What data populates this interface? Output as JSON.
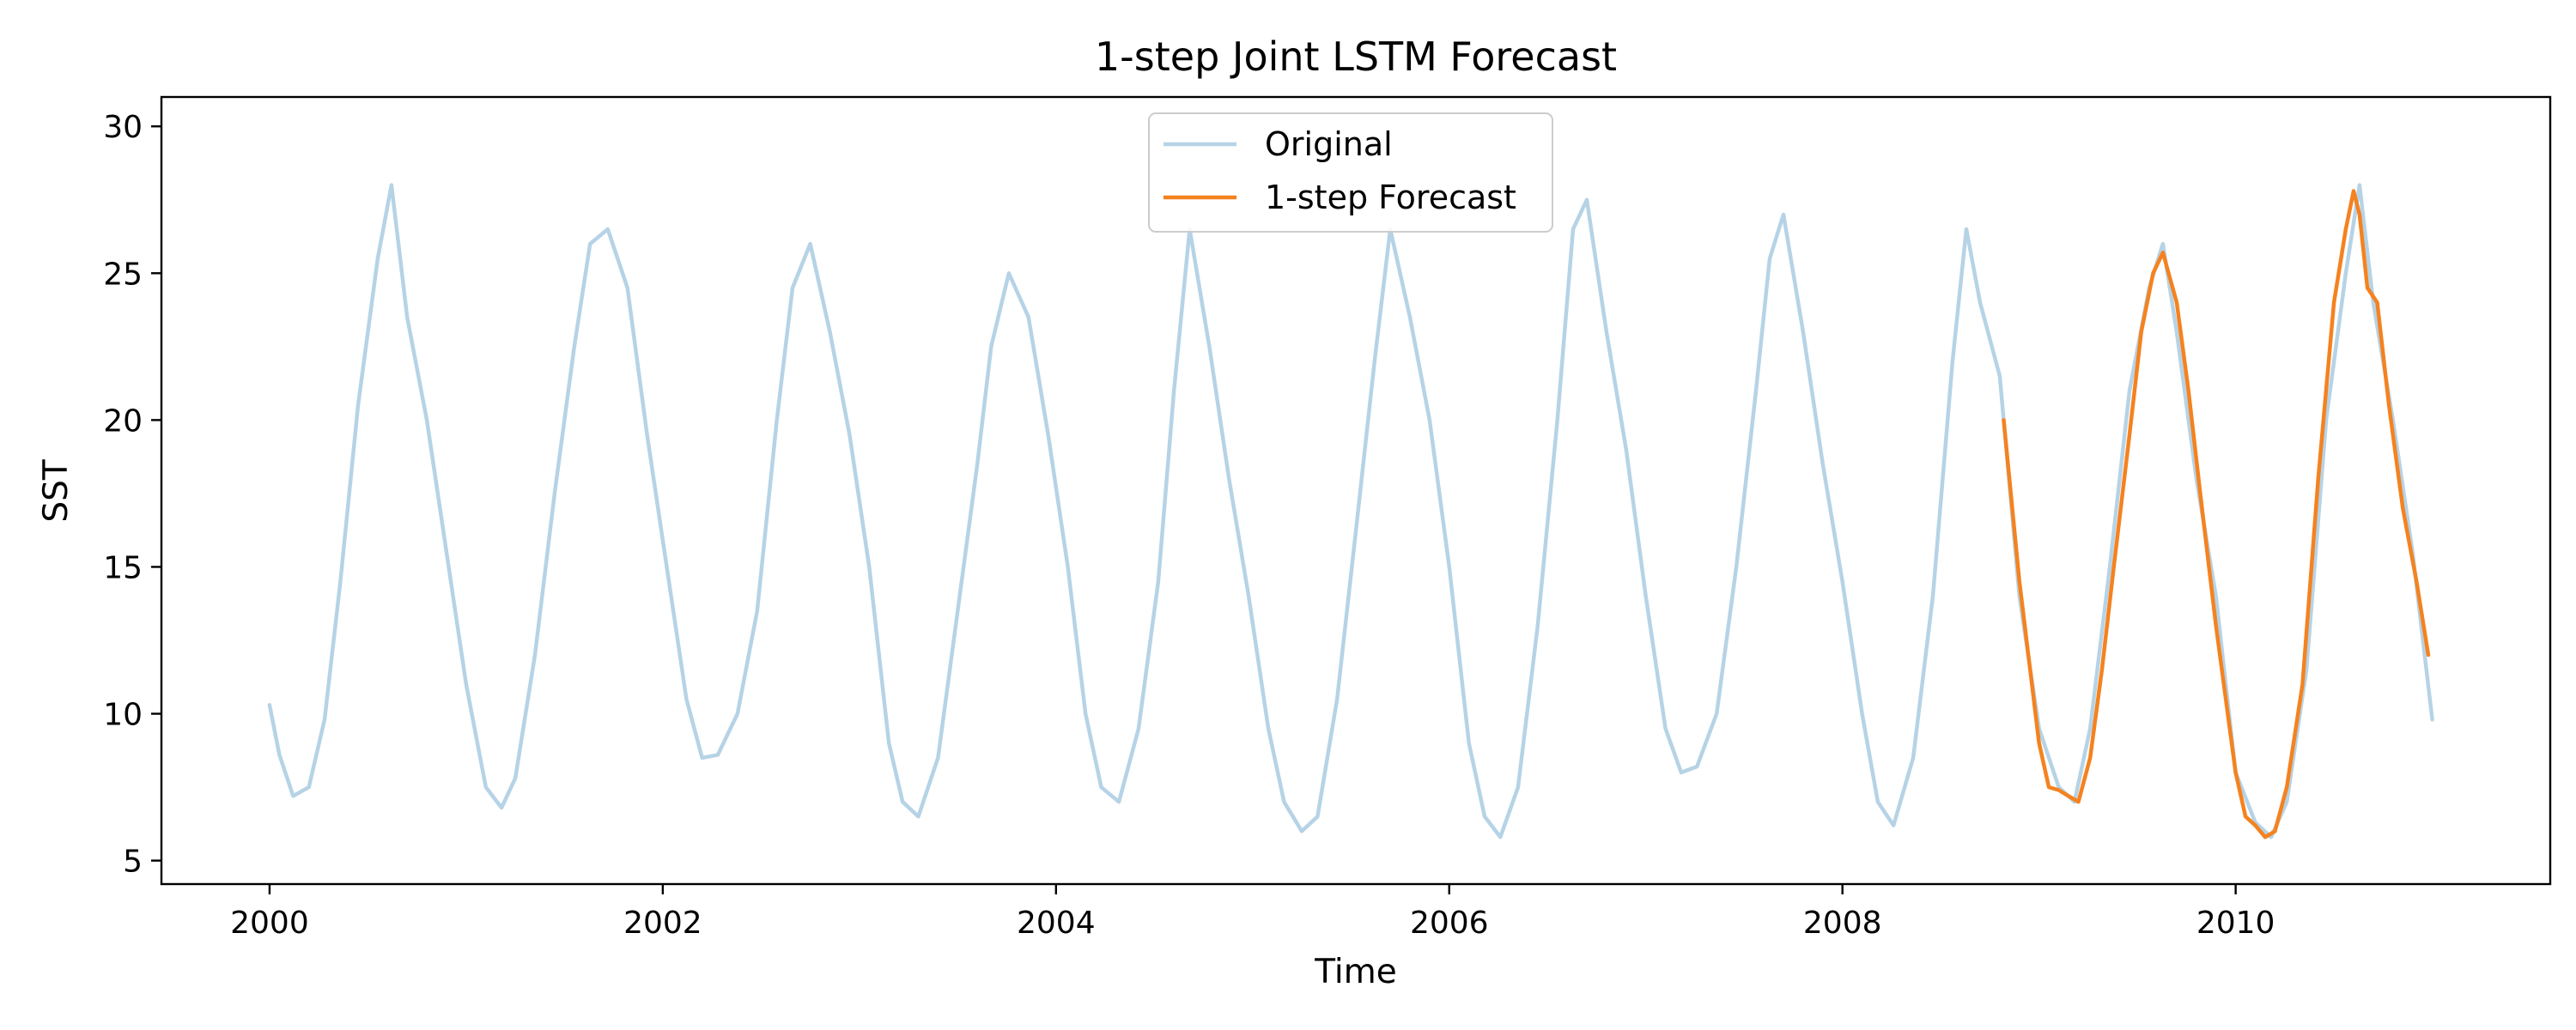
{
  "chart_data": {
    "type": "line",
    "title": "1-step Joint LSTM Forecast",
    "xlabel": "Time",
    "ylabel": "SST",
    "xlim": [
      1999.45,
      2011.6
    ],
    "ylim": [
      4.2,
      31.0
    ],
    "x_ticks": [
      2000,
      2002,
      2004,
      2006,
      2008,
      2010
    ],
    "x_tick_labels": [
      "2000",
      "2002",
      "2004",
      "2006",
      "2008",
      "2010"
    ],
    "y_ticks": [
      5,
      10,
      15,
      20,
      25,
      30
    ],
    "y_tick_labels": [
      "5",
      "10",
      "15",
      "20",
      "25",
      "30"
    ],
    "grid": false,
    "legend": {
      "position": "top-center",
      "entries": [
        "Original",
        "1-step Forecast"
      ]
    },
    "series": [
      {
        "name": "Original",
        "color": "#b6d3e6",
        "x": [
          2000.0,
          2000.05,
          2000.12,
          2000.2,
          2000.28,
          2000.36,
          2000.45,
          2000.55,
          2000.62,
          2000.7,
          2000.8,
          2000.9,
          2001.0,
          2001.1,
          2001.18,
          2001.25,
          2001.35,
          2001.45,
          2001.55,
          2001.63,
          2001.72,
          2001.82,
          2001.92,
          2002.02,
          2002.12,
          2002.2,
          2002.28,
          2002.38,
          2002.48,
          2002.58,
          2002.66,
          2002.75,
          2002.85,
          2002.95,
          2003.05,
          2003.15,
          2003.22,
          2003.3,
          2003.4,
          2003.5,
          2003.6,
          2003.67,
          2003.76,
          2003.86,
          2003.96,
          2004.06,
          2004.15,
          2004.23,
          2004.32,
          2004.42,
          2004.52,
          2004.6,
          2004.68,
          2004.78,
          2004.88,
          2004.98,
          2005.08,
          2005.16,
          2005.25,
          2005.33,
          2005.43,
          2005.53,
          2005.62,
          2005.7,
          2005.8,
          2005.9,
          2006.0,
          2006.1,
          2006.18,
          2006.26,
          2006.35,
          2006.45,
          2006.55,
          2006.63,
          2006.7,
          2006.8,
          2006.9,
          2007.0,
          2007.1,
          2007.18,
          2007.26,
          2007.36,
          2007.46,
          2007.56,
          2007.63,
          2007.7,
          2007.8,
          2007.9,
          2008.0,
          2008.1,
          2008.18,
          2008.26,
          2008.36,
          2008.46,
          2008.56,
          2008.63,
          2008.7,
          2008.8,
          2008.9,
          2009.0,
          2009.1,
          2009.18,
          2009.26,
          2009.36,
          2009.46,
          2009.56,
          2009.63,
          2009.7,
          2009.8,
          2009.9,
          2010.0,
          2010.1,
          2010.18,
          2010.26,
          2010.36,
          2010.46,
          2010.56,
          2010.63,
          2010.7,
          2010.8,
          2010.9,
          2011.0
        ],
        "values": [
          10.3,
          8.6,
          7.2,
          7.5,
          9.8,
          14.5,
          20.5,
          25.5,
          28.0,
          23.5,
          20.0,
          15.5,
          11.0,
          7.5,
          6.8,
          7.8,
          12.0,
          17.5,
          22.5,
          26.0,
          26.5,
          24.5,
          19.5,
          15.0,
          10.5,
          8.5,
          8.6,
          10.0,
          13.5,
          20.0,
          24.5,
          26.0,
          23.0,
          19.5,
          15.0,
          9.0,
          7.0,
          6.5,
          8.5,
          13.5,
          18.5,
          22.5,
          25.0,
          23.5,
          19.5,
          15.0,
          10.0,
          7.5,
          7.0,
          9.5,
          14.5,
          21.0,
          26.5,
          22.5,
          18.0,
          14.0,
          9.5,
          7.0,
          6.0,
          6.5,
          10.5,
          16.5,
          22.0,
          26.5,
          23.5,
          20.0,
          15.0,
          9.0,
          6.5,
          5.8,
          7.5,
          13.0,
          20.0,
          26.5,
          27.5,
          23.0,
          19.0,
          14.0,
          9.5,
          8.0,
          8.2,
          10.0,
          15.0,
          21.0,
          25.5,
          27.0,
          23.0,
          18.5,
          14.5,
          10.0,
          7.0,
          6.2,
          8.5,
          14.0,
          22.0,
          26.5,
          24.0,
          21.5,
          14.0,
          9.5,
          7.5,
          7.0,
          9.5,
          15.0,
          21.0,
          24.5,
          26.0,
          23.0,
          18.0,
          14.0,
          8.0,
          6.3,
          5.8,
          7.0,
          11.5,
          20.0,
          25.0,
          28.0,
          24.0,
          20.0,
          15.5,
          9.8
        ]
      },
      {
        "name": "1-step Forecast",
        "color": "#f5821f",
        "x": [
          2008.82,
          2008.9,
          2009.0,
          2009.05,
          2009.1,
          2009.15,
          2009.2,
          2009.26,
          2009.32,
          2009.38,
          2009.46,
          2009.52,
          2009.58,
          2009.63,
          2009.7,
          2009.76,
          2009.82,
          2009.9,
          2010.0,
          2010.05,
          2010.1,
          2010.15,
          2010.2,
          2010.26,
          2010.34,
          2010.42,
          2010.5,
          2010.56,
          2010.6,
          2010.63,
          2010.67,
          2010.72,
          2010.78,
          2010.85,
          2010.92,
          2010.98
        ],
        "values": [
          20.0,
          14.5,
          9.0,
          7.5,
          7.4,
          7.2,
          7.0,
          8.5,
          11.5,
          15.0,
          19.5,
          23.0,
          25.0,
          25.7,
          24.0,
          21.0,
          17.5,
          13.0,
          8.0,
          6.5,
          6.2,
          5.8,
          6.0,
          7.5,
          11.0,
          18.0,
          24.0,
          26.5,
          27.8,
          27.0,
          24.5,
          24.0,
          20.5,
          17.0,
          14.5,
          12.0
        ]
      }
    ]
  }
}
